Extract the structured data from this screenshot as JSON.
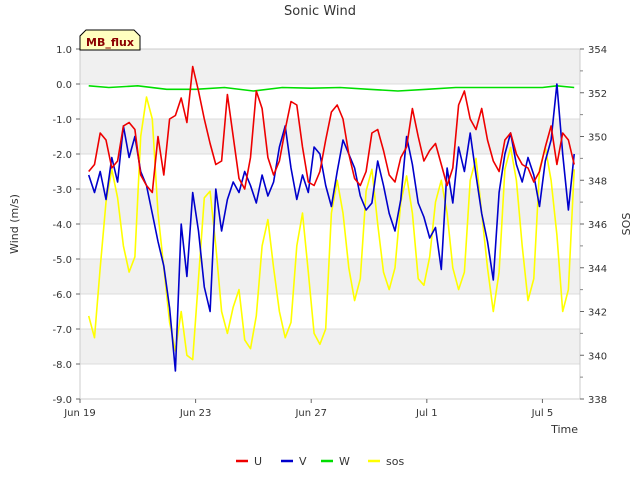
{
  "chart_data": {
    "type": "line",
    "title": "Sonic Wind",
    "badge": "MB_flux",
    "xlabel": "Time",
    "ylabel": "Wind (m/s)",
    "y2label": "SOS",
    "xlim": [
      0,
      17.3
    ],
    "ylim": [
      -9.0,
      1.0
    ],
    "y2lim": [
      338,
      354
    ],
    "x_ticks": [
      {
        "value": 0,
        "label": "Jun 19"
      },
      {
        "value": 4,
        "label": "Jun 23"
      },
      {
        "value": 8,
        "label": "Jun 27"
      },
      {
        "value": 12,
        "label": "Jul 1"
      },
      {
        "value": 16,
        "label": "Jul 5"
      }
    ],
    "y_ticks": [
      {
        "value": 1.0,
        "label": "1.0"
      },
      {
        "value": 0.0,
        "label": "0.0"
      },
      {
        "value": -1.0,
        "label": "-1.0"
      },
      {
        "value": -2.0,
        "label": "-2.0"
      },
      {
        "value": -3.0,
        "label": "-3.0"
      },
      {
        "value": -4.0,
        "label": "-4.0"
      },
      {
        "value": -5.0,
        "label": "-5.0"
      },
      {
        "value": -6.0,
        "label": "-6.0"
      },
      {
        "value": -7.0,
        "label": "-7.0"
      },
      {
        "value": -8.0,
        "label": "-8.0"
      },
      {
        "value": -9.0,
        "label": "-9.0"
      }
    ],
    "y2_ticks": [
      {
        "value": 354,
        "label": "354"
      },
      {
        "value": 352,
        "label": "352"
      },
      {
        "value": 350,
        "label": "350"
      },
      {
        "value": 348,
        "label": "348"
      },
      {
        "value": 346,
        "label": "346"
      },
      {
        "value": 344,
        "label": "344"
      },
      {
        "value": 342,
        "label": "342"
      },
      {
        "value": 340,
        "label": "340"
      },
      {
        "value": 338,
        "label": "338"
      }
    ],
    "legend_position": "bottom-center",
    "series": [
      {
        "name": "U",
        "color": "#ee0000",
        "axis": "left",
        "x": [
          0.3,
          0.5,
          0.7,
          0.9,
          1.1,
          1.3,
          1.5,
          1.7,
          1.9,
          2.1,
          2.3,
          2.5,
          2.7,
          2.9,
          3.1,
          3.3,
          3.5,
          3.7,
          3.9,
          4.1,
          4.3,
          4.5,
          4.7,
          4.9,
          5.1,
          5.3,
          5.5,
          5.7,
          5.9,
          6.1,
          6.3,
          6.5,
          6.7,
          6.9,
          7.1,
          7.3,
          7.5,
          7.7,
          7.9,
          8.1,
          8.3,
          8.5,
          8.7,
          8.9,
          9.1,
          9.3,
          9.5,
          9.7,
          9.9,
          10.1,
          10.3,
          10.5,
          10.7,
          10.9,
          11.1,
          11.3,
          11.5,
          11.7,
          11.9,
          12.1,
          12.3,
          12.5,
          12.7,
          12.9,
          13.1,
          13.3,
          13.5,
          13.7,
          13.9,
          14.1,
          14.3,
          14.5,
          14.7,
          14.9,
          15.1,
          15.3,
          15.5,
          15.7,
          15.9,
          16.1,
          16.3,
          16.5,
          16.7,
          16.9,
          17.1
        ],
        "values": [
          -2.5,
          -2.3,
          -1.4,
          -1.6,
          -2.4,
          -2.2,
          -1.2,
          -1.1,
          -1.3,
          -2.6,
          -2.9,
          -3.1,
          -1.5,
          -2.6,
          -1.0,
          -0.9,
          -0.4,
          -1.1,
          0.5,
          -0.2,
          -1.0,
          -1.7,
          -2.3,
          -2.2,
          -0.3,
          -1.5,
          -2.7,
          -3.0,
          -2.1,
          -0.2,
          -0.7,
          -2.1,
          -2.6,
          -2.2,
          -1.3,
          -0.5,
          -0.6,
          -1.8,
          -2.8,
          -2.9,
          -2.5,
          -1.6,
          -0.8,
          -0.6,
          -1.0,
          -2.0,
          -2.7,
          -2.9,
          -2.5,
          -1.4,
          -1.3,
          -1.9,
          -2.6,
          -2.8,
          -2.1,
          -1.8,
          -0.7,
          -1.5,
          -2.2,
          -1.9,
          -1.7,
          -2.3,
          -2.9,
          -2.4,
          -0.6,
          -0.2,
          -1.0,
          -1.3,
          -0.7,
          -1.6,
          -2.2,
          -2.5,
          -1.6,
          -1.4,
          -2.0,
          -2.3,
          -2.4,
          -2.8,
          -2.5,
          -1.8,
          -1.2,
          -2.3,
          -1.4,
          -1.6,
          -2.3
        ]
      },
      {
        "name": "V",
        "color": "#0000cc",
        "axis": "left",
        "x": [
          0.3,
          0.5,
          0.7,
          0.9,
          1.1,
          1.3,
          1.5,
          1.7,
          1.9,
          2.1,
          2.3,
          2.5,
          2.7,
          2.9,
          3.1,
          3.3,
          3.5,
          3.7,
          3.9,
          4.1,
          4.3,
          4.5,
          4.7,
          4.9,
          5.1,
          5.3,
          5.5,
          5.7,
          5.9,
          6.1,
          6.3,
          6.5,
          6.7,
          6.9,
          7.1,
          7.3,
          7.5,
          7.7,
          7.9,
          8.1,
          8.3,
          8.5,
          8.7,
          8.9,
          9.1,
          9.3,
          9.5,
          9.7,
          9.9,
          10.1,
          10.3,
          10.5,
          10.7,
          10.9,
          11.1,
          11.3,
          11.5,
          11.7,
          11.9,
          12.1,
          12.3,
          12.5,
          12.7,
          12.9,
          13.1,
          13.3,
          13.5,
          13.7,
          13.9,
          14.1,
          14.3,
          14.5,
          14.7,
          14.9,
          15.1,
          15.3,
          15.5,
          15.7,
          15.9,
          16.1,
          16.3,
          16.5,
          16.7,
          16.9,
          17.1
        ],
        "values": [
          -2.6,
          -3.1,
          -2.5,
          -3.3,
          -2.1,
          -2.8,
          -1.2,
          -2.1,
          -1.5,
          -2.5,
          -2.9,
          -3.7,
          -4.5,
          -5.2,
          -6.4,
          -8.2,
          -4.0,
          -5.5,
          -3.1,
          -4.2,
          -5.8,
          -6.5,
          -3.0,
          -4.2,
          -3.3,
          -2.8,
          -3.1,
          -2.5,
          -2.9,
          -3.4,
          -2.6,
          -3.2,
          -2.8,
          -1.8,
          -1.2,
          -2.4,
          -3.3,
          -2.6,
          -3.1,
          -1.8,
          -2.0,
          -2.9,
          -3.5,
          -2.5,
          -1.6,
          -2.0,
          -2.4,
          -3.2,
          -3.6,
          -3.4,
          -2.2,
          -2.9,
          -3.7,
          -4.2,
          -3.3,
          -1.5,
          -2.3,
          -3.4,
          -3.8,
          -4.4,
          -4.1,
          -5.3,
          -2.4,
          -3.4,
          -1.8,
          -2.5,
          -1.4,
          -2.6,
          -3.7,
          -4.5,
          -5.6,
          -3.1,
          -2.0,
          -1.4,
          -2.3,
          -2.8,
          -2.1,
          -2.6,
          -3.5,
          -2.2,
          -1.6,
          0.0,
          -2.0,
          -3.6,
          -2.0
        ]
      },
      {
        "name": "W",
        "color": "#00dd00",
        "axis": "left",
        "x": [
          0.3,
          1.0,
          2.0,
          3.0,
          4.0,
          5.0,
          6.0,
          7.0,
          8.0,
          9.0,
          10.0,
          11.0,
          12.0,
          13.0,
          14.0,
          15.0,
          16.0,
          16.5,
          17.1
        ],
        "values": [
          -0.05,
          -0.1,
          -0.05,
          -0.15,
          -0.15,
          -0.1,
          -0.2,
          -0.1,
          -0.12,
          -0.1,
          -0.15,
          -0.2,
          -0.15,
          -0.1,
          -0.1,
          -0.1,
          -0.1,
          -0.05,
          -0.1
        ]
      },
      {
        "name": "sos",
        "color": "#ffff00",
        "axis": "right",
        "x": [
          0.3,
          0.5,
          0.7,
          0.9,
          1.1,
          1.3,
          1.5,
          1.7,
          1.9,
          2.1,
          2.3,
          2.5,
          2.7,
          2.9,
          3.1,
          3.3,
          3.5,
          3.7,
          3.9,
          4.1,
          4.3,
          4.5,
          4.7,
          4.9,
          5.1,
          5.3,
          5.5,
          5.7,
          5.9,
          6.1,
          6.3,
          6.5,
          6.7,
          6.9,
          7.1,
          7.3,
          7.5,
          7.7,
          7.9,
          8.1,
          8.3,
          8.5,
          8.7,
          8.9,
          9.1,
          9.3,
          9.5,
          9.7,
          9.9,
          10.1,
          10.3,
          10.5,
          10.7,
          10.9,
          11.1,
          11.3,
          11.5,
          11.7,
          11.9,
          12.1,
          12.3,
          12.5,
          12.7,
          12.9,
          13.1,
          13.3,
          13.5,
          13.7,
          13.9,
          14.1,
          14.3,
          14.5,
          14.7,
          14.9,
          15.1,
          15.3,
          15.5,
          15.7,
          15.9,
          16.1,
          16.3,
          16.5,
          16.7,
          16.9,
          17.1
        ],
        "values": [
          341.8,
          340.8,
          344.0,
          347.0,
          348.5,
          347.2,
          345.0,
          343.8,
          344.5,
          350.0,
          351.8,
          350.8,
          346.5,
          344.0,
          341.5,
          340.2,
          342.0,
          340.0,
          339.8,
          343.5,
          347.2,
          347.5,
          345.0,
          342.0,
          341.0,
          342.2,
          343.0,
          340.7,
          340.3,
          341.8,
          345.0,
          346.2,
          344.0,
          342.0,
          340.8,
          341.5,
          345.0,
          346.5,
          343.8,
          341.0,
          340.5,
          341.2,
          346.5,
          348.0,
          346.5,
          344.0,
          342.5,
          343.5,
          347.5,
          348.5,
          346.0,
          343.8,
          343.0,
          344.0,
          347.0,
          348.2,
          346.5,
          343.5,
          343.2,
          344.5,
          347.0,
          348.0,
          346.5,
          344.0,
          343.0,
          343.8,
          348.0,
          349.0,
          346.5,
          344.0,
          342.0,
          343.8,
          348.5,
          349.5,
          348.0,
          345.0,
          342.5,
          343.5,
          348.5,
          349.5,
          348.0,
          345.5,
          342.0,
          343.0,
          348.5
        ]
      }
    ]
  }
}
